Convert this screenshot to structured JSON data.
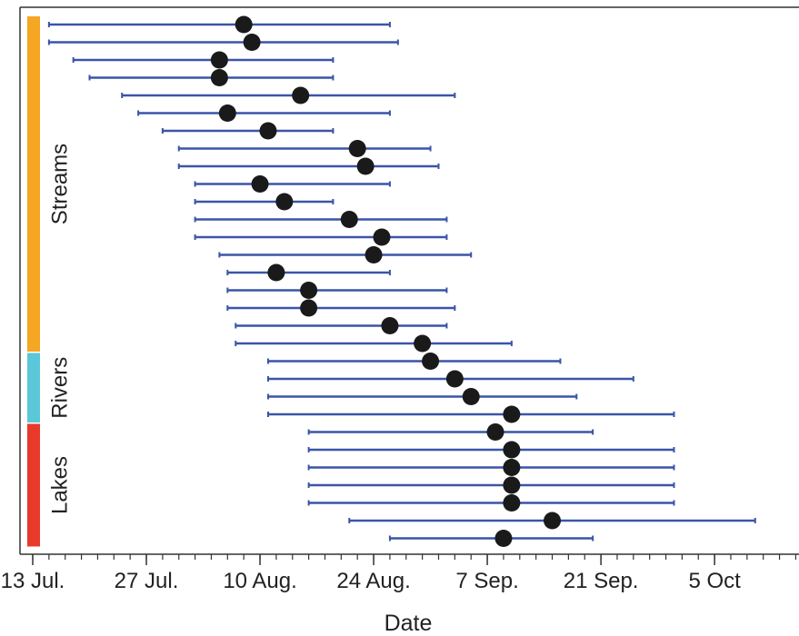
{
  "chart_data": {
    "type": "scatter",
    "xlabel": "Date",
    "ylabel": "",
    "x_tick_labels": [
      {
        "date": "2013-07-13",
        "label": "13 Jul."
      },
      {
        "date": "2013-07-27",
        "label": "27 Jul."
      },
      {
        "date": "2013-08-10",
        "label": "10 Aug."
      },
      {
        "date": "2013-08-24",
        "label": "24 Aug."
      },
      {
        "date": "2013-09-07",
        "label": "7 Sep."
      },
      {
        "date": "2013-09-21",
        "label": "21 Sep."
      },
      {
        "date": "2013-10-05",
        "label": "5 Oct"
      }
    ],
    "xlim": [
      "2013-07-12",
      "2013-10-16"
    ],
    "grid": false,
    "groups": [
      {
        "label": "Streams",
        "color": "#F5A623",
        "rows": [
          1,
          19
        ]
      },
      {
        "label": "Rivers",
        "color": "#5AC8D8",
        "rows": [
          20,
          23
        ]
      },
      {
        "label": "Lakes",
        "color": "#E8392B",
        "rows": [
          24,
          30
        ]
      }
    ],
    "series": [
      {
        "point_color": "#1a1a1a",
        "range_color": "#3a55a8",
        "points": [
          {
            "start": "2013-07-15",
            "date": "2013-08-08",
            "end": "2013-08-26"
          },
          {
            "start": "2013-07-15",
            "date": "2013-08-09",
            "end": "2013-08-27"
          },
          {
            "start": "2013-07-18",
            "date": "2013-08-05",
            "end": "2013-08-19"
          },
          {
            "start": "2013-07-20",
            "date": "2013-08-05",
            "end": "2013-08-19"
          },
          {
            "start": "2013-07-24",
            "date": "2013-08-15",
            "end": "2013-09-03"
          },
          {
            "start": "2013-07-26",
            "date": "2013-08-06",
            "end": "2013-08-26"
          },
          {
            "start": "2013-07-29",
            "date": "2013-08-11",
            "end": "2013-08-19"
          },
          {
            "start": "2013-07-31",
            "date": "2013-08-22",
            "end": "2013-08-31"
          },
          {
            "start": "2013-07-31",
            "date": "2013-08-23",
            "end": "2013-09-01"
          },
          {
            "start": "2013-08-02",
            "date": "2013-08-10",
            "end": "2013-08-26"
          },
          {
            "start": "2013-08-02",
            "date": "2013-08-13",
            "end": "2013-08-19"
          },
          {
            "start": "2013-08-02",
            "date": "2013-08-21",
            "end": "2013-09-02"
          },
          {
            "start": "2013-08-02",
            "date": "2013-08-25",
            "end": "2013-09-02"
          },
          {
            "start": "2013-08-05",
            "date": "2013-08-24",
            "end": "2013-09-05"
          },
          {
            "start": "2013-08-06",
            "date": "2013-08-12",
            "end": "2013-08-26"
          },
          {
            "start": "2013-08-06",
            "date": "2013-08-16",
            "end": "2013-09-02"
          },
          {
            "start": "2013-08-06",
            "date": "2013-08-16",
            "end": "2013-09-03"
          },
          {
            "start": "2013-08-07",
            "date": "2013-08-26",
            "end": "2013-09-02"
          },
          {
            "start": "2013-08-07",
            "date": "2013-08-30",
            "end": "2013-09-10"
          },
          {
            "start": "2013-08-11",
            "date": "2013-08-31",
            "end": "2013-09-16"
          },
          {
            "start": "2013-08-11",
            "date": "2013-09-03",
            "end": "2013-09-25"
          },
          {
            "start": "2013-08-11",
            "date": "2013-09-05",
            "end": "2013-09-18"
          },
          {
            "start": "2013-08-11",
            "date": "2013-09-10",
            "end": "2013-09-30"
          },
          {
            "start": "2013-08-16",
            "date": "2013-09-08",
            "end": "2013-09-20"
          },
          {
            "start": "2013-08-16",
            "date": "2013-09-10",
            "end": "2013-09-30"
          },
          {
            "start": "2013-08-16",
            "date": "2013-09-10",
            "end": "2013-09-30"
          },
          {
            "start": "2013-08-16",
            "date": "2013-09-10",
            "end": "2013-09-30"
          },
          {
            "start": "2013-08-16",
            "date": "2013-09-10",
            "end": "2013-09-30"
          },
          {
            "start": "2013-08-21",
            "date": "2013-09-15",
            "end": "2013-10-10"
          },
          {
            "start": "2013-08-26",
            "date": "2013-09-09",
            "end": "2013-09-20"
          }
        ]
      }
    ]
  }
}
